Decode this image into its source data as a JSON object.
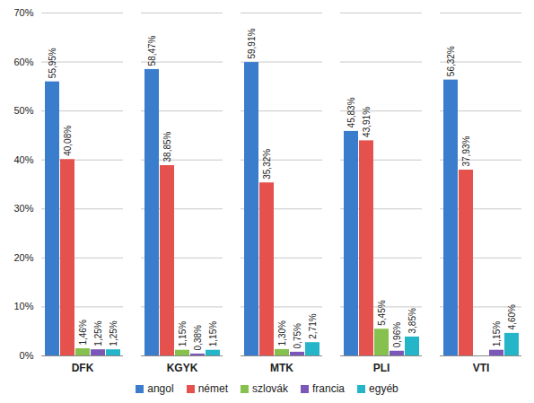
{
  "chart_data": {
    "type": "bar",
    "categories": [
      "DFK",
      "KGYK",
      "MTK",
      "PLI",
      "VTI"
    ],
    "series": [
      {
        "name": "angol",
        "color": "#3a7dcc",
        "values": [
          55.95,
          58.47,
          59.91,
          45.83,
          56.32
        ],
        "value_labels": [
          "55,95%",
          "58,47%",
          "59,91%",
          "45,83%",
          "56,32%"
        ]
      },
      {
        "name": "német",
        "color": "#e5524e",
        "values": [
          40.08,
          38.85,
          35.32,
          43.91,
          37.93
        ],
        "value_labels": [
          "40,08%",
          "38,85%",
          "35,32%",
          "43,91%",
          "37,93%"
        ]
      },
      {
        "name": "szlovák",
        "color": "#86c04f",
        "values": [
          1.46,
          1.15,
          1.3,
          5.45,
          null
        ],
        "value_labels": [
          "1,46%",
          "1,15%",
          "1,30%",
          "5,45%",
          null
        ]
      },
      {
        "name": "francia",
        "color": "#7b58b8",
        "values": [
          1.25,
          0.38,
          0.75,
          0.96,
          1.15
        ],
        "value_labels": [
          "1,25%",
          "0,38%",
          "0,75%",
          "0,96%",
          "1,15%"
        ]
      },
      {
        "name": "egyéb",
        "color": "#25b5c8",
        "values": [
          1.25,
          1.15,
          2.71,
          3.85,
          4.6
        ],
        "value_labels": [
          "1,25%",
          "1,15%",
          "2,71%",
          "3,85%",
          "4,60%"
        ]
      }
    ],
    "ylim": [
      0,
      70
    ],
    "yticks": [
      {
        "value": 0,
        "label": "0%"
      },
      {
        "value": 10,
        "label": "10%"
      },
      {
        "value": 20,
        "label": "20%"
      },
      {
        "value": 30,
        "label": "30%"
      },
      {
        "value": 40,
        "label": "40%"
      },
      {
        "value": 50,
        "label": "50%"
      },
      {
        "value": 60,
        "label": "60%"
      },
      {
        "value": 70,
        "label": "70%"
      }
    ],
    "grid": true,
    "legend": "bottom",
    "data_labels": true
  }
}
